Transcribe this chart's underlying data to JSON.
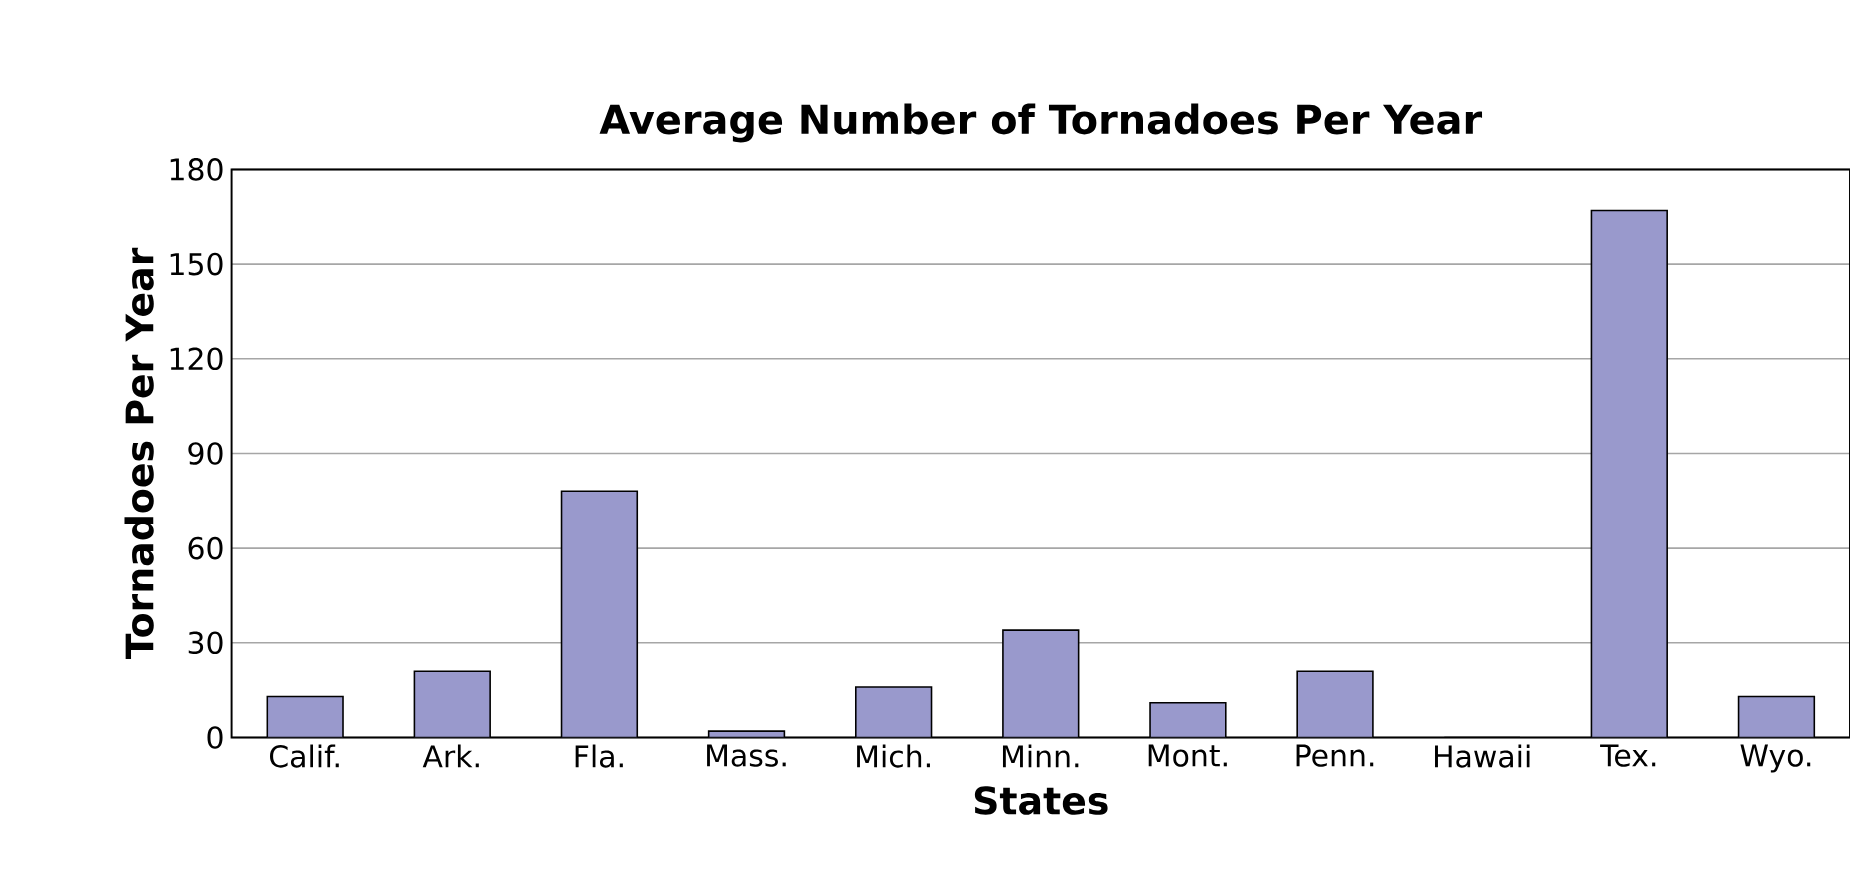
{
  "chart_data": {
    "type": "bar",
    "title": "Average Number of Tornadoes Per Year",
    "xlabel": "States",
    "ylabel": "Tornadoes Per Year",
    "categories": [
      "Calif.",
      "Ark.",
      "Fla.",
      "Mass.",
      "Mich.",
      "Minn.",
      "Mont.",
      "Penn.",
      "Hawaii",
      "Tex.",
      "Wyo."
    ],
    "values": [
      13,
      21,
      78,
      2,
      16,
      34,
      11,
      21,
      0,
      167,
      13
    ],
    "color": "#9999cc",
    "ylim": [
      0,
      180
    ],
    "yticks": [
      0,
      30,
      60,
      90,
      120,
      150,
      180
    ],
    "grid": "y"
  }
}
